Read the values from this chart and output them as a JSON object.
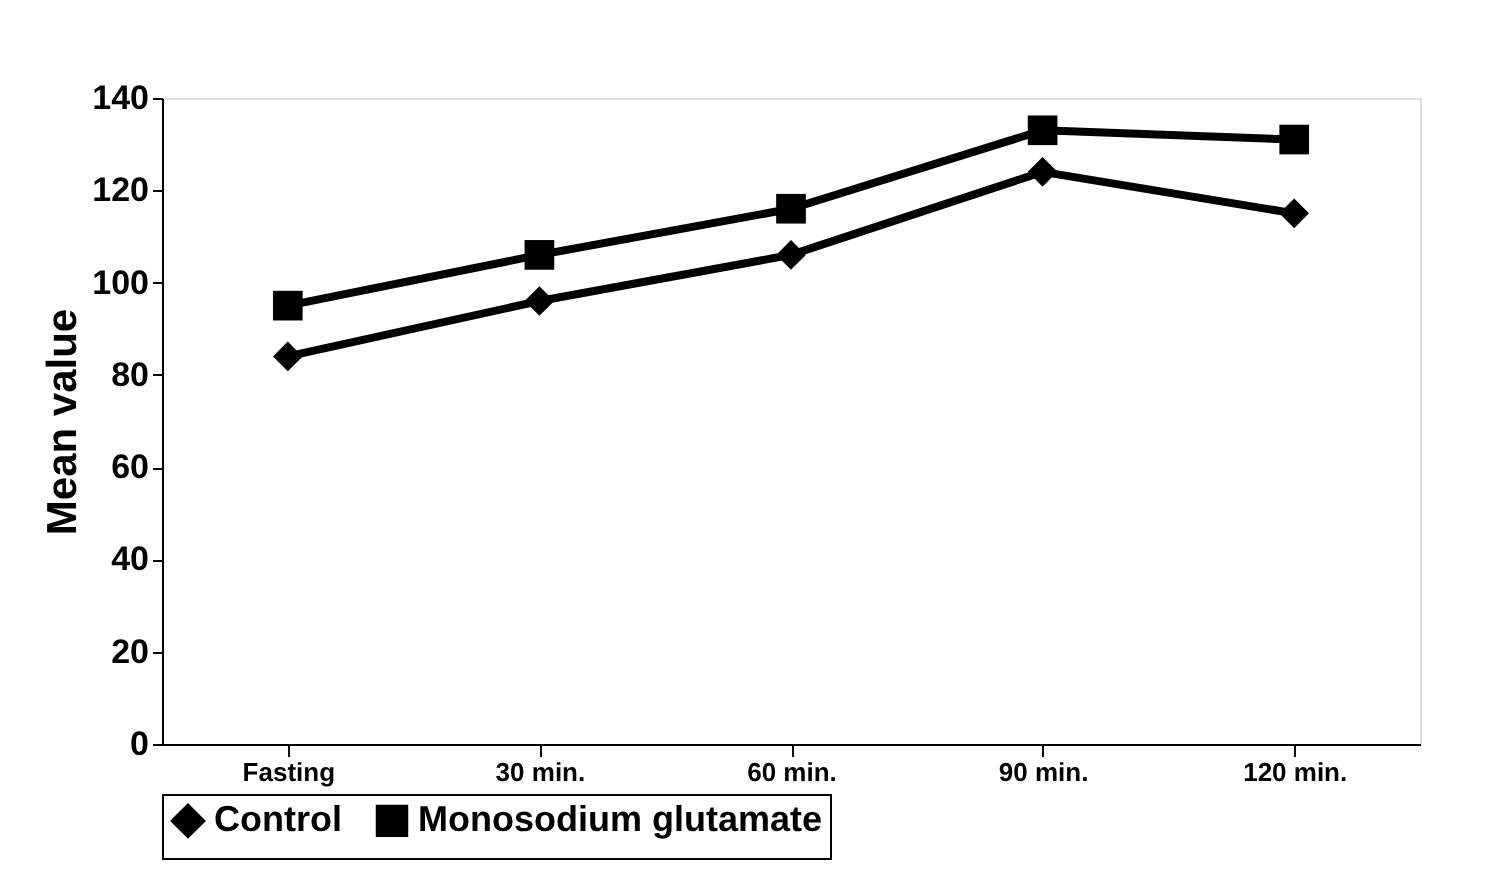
{
  "chart_data": {
    "type": "line",
    "ylabel": "Mean value",
    "categories": [
      "Fasting",
      "30 min.",
      "60 min.",
      "90 min.",
      "120 min."
    ],
    "series": [
      {
        "name": "Control",
        "color": "#000000",
        "marker": "diamond",
        "values": [
          84,
          96,
          106,
          124,
          115
        ]
      },
      {
        "name": "Monosodium glutamate",
        "color": "#000000",
        "marker": "square",
        "values": [
          95,
          106,
          116,
          133,
          131
        ]
      }
    ],
    "ylim": [
      0,
      140
    ],
    "yticks": [
      0,
      20,
      40,
      60,
      80,
      100,
      120,
      140
    ],
    "grid": false,
    "legend": "bottom",
    "line_style": "solid"
  }
}
